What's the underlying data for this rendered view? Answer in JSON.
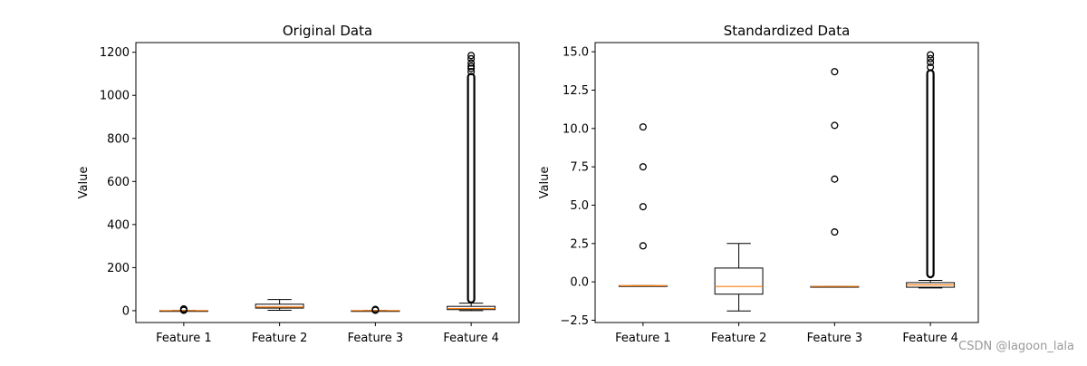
{
  "watermark": "CSDN @lagoon_lala",
  "chart_data": [
    {
      "type": "boxplot",
      "title": "Original Data",
      "xlabel": "",
      "ylabel": "Value",
      "ylim": [
        -55,
        1245
      ],
      "yticks": [
        0,
        200,
        400,
        600,
        800,
        1000,
        1200
      ],
      "categories": [
        "Feature 1",
        "Feature 2",
        "Feature 3",
        "Feature 4"
      ],
      "boxes": [
        {
          "whislo": 0,
          "q1": 0,
          "med": 0,
          "q3": 0,
          "whishi": 0,
          "fliers": [
            2,
            4,
            6,
            8
          ]
        },
        {
          "whislo": 2,
          "q1": 12,
          "med": 17,
          "q3": 30,
          "whishi": 52,
          "fliers": []
        },
        {
          "whislo": 0,
          "q1": 0,
          "med": 0,
          "q3": 0,
          "whishi": 0,
          "fliers": [
            2,
            4,
            6
          ]
        },
        {
          "whislo": 0,
          "q1": 5,
          "med": 10,
          "q3": 20,
          "whishi": 35,
          "flier_dense_range": [
            38,
            1100
          ],
          "fliers": [
            1110,
            1125,
            1135,
            1150,
            1170,
            1185
          ]
        }
      ],
      "grid": false
    },
    {
      "type": "boxplot",
      "title": "Standardized Data",
      "xlabel": "",
      "ylabel": "Value",
      "ylim": [
        -2.65,
        15.6
      ],
      "yticks": [
        -2.5,
        0.0,
        2.5,
        5.0,
        7.5,
        10.0,
        12.5,
        15.0
      ],
      "ytick_labels": [
        "−2.5",
        "0.0",
        "2.5",
        "5.0",
        "7.5",
        "10.0",
        "12.5",
        "15.0"
      ],
      "categories": [
        "Feature 1",
        "Feature 2",
        "Feature 3",
        "Feature 4"
      ],
      "boxes": [
        {
          "whislo": -0.25,
          "q1": -0.25,
          "med": -0.25,
          "q3": -0.25,
          "whishi": -0.25,
          "fliers": [
            2.35,
            4.9,
            7.5,
            10.1
          ]
        },
        {
          "whislo": -1.9,
          "q1": -0.8,
          "med": -0.3,
          "q3": 0.9,
          "whishi": 2.5,
          "fliers": []
        },
        {
          "whislo": -0.3,
          "q1": -0.3,
          "med": -0.3,
          "q3": -0.3,
          "whishi": -0.3,
          "fliers": [
            3.25,
            6.7,
            10.2,
            13.7
          ]
        },
        {
          "whislo": -0.4,
          "q1": -0.35,
          "med": -0.2,
          "q3": -0.05,
          "whishi": 0.1,
          "flier_dense_range": [
            0.3,
            13.8
          ],
          "fliers": [
            14.0,
            14.3,
            14.55,
            14.8
          ]
        }
      ],
      "grid": false
    }
  ]
}
